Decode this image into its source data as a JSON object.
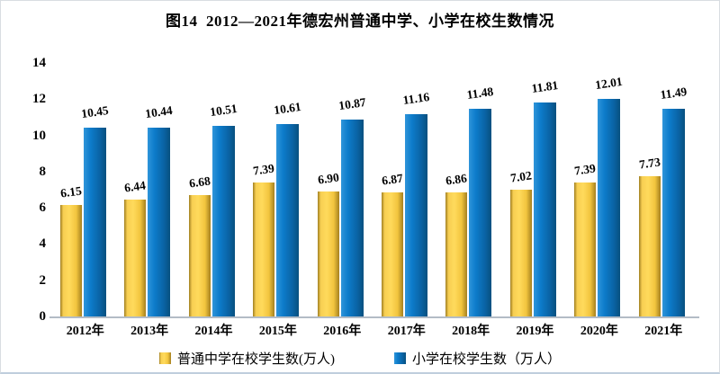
{
  "title": "图14  2012—2021年德宏州普通中学、小学在校生数情况",
  "chart_data": {
    "type": "bar",
    "categories": [
      "2012年",
      "2013年",
      "2014年",
      "2015年",
      "2016年",
      "2017年",
      "2018年",
      "2019年",
      "2020年",
      "2021年"
    ],
    "series": [
      {
        "name": "普通中学在校学生数(万人)",
        "color_key": "middle",
        "values": [
          6.15,
          6.44,
          6.68,
          7.39,
          6.9,
          6.87,
          6.86,
          7.02,
          7.39,
          7.73
        ]
      },
      {
        "name": "小学在校学生数（万人）",
        "color_key": "primary",
        "values": [
          10.45,
          10.44,
          10.51,
          10.61,
          10.87,
          11.16,
          11.48,
          11.81,
          12.01,
          11.49
        ]
      }
    ],
    "title": "图14  2012—2021年德宏州普通中学、小学在校生数情况",
    "xlabel": "",
    "ylabel": "",
    "ylim": [
      0,
      14
    ],
    "y_ticks": [
      0,
      2,
      4,
      6,
      8,
      10,
      12,
      14
    ],
    "grid": false,
    "data_labels": true,
    "data_label_decimals": 2,
    "legend_position": "bottom",
    "colors": {
      "middle": "#F2C53E",
      "middle_light": "#FFDA5C",
      "middle_dark": "#A5801F",
      "primary": "#0B72BF",
      "primary_light": "#2F95DA",
      "primary_dark": "#07507F"
    }
  }
}
